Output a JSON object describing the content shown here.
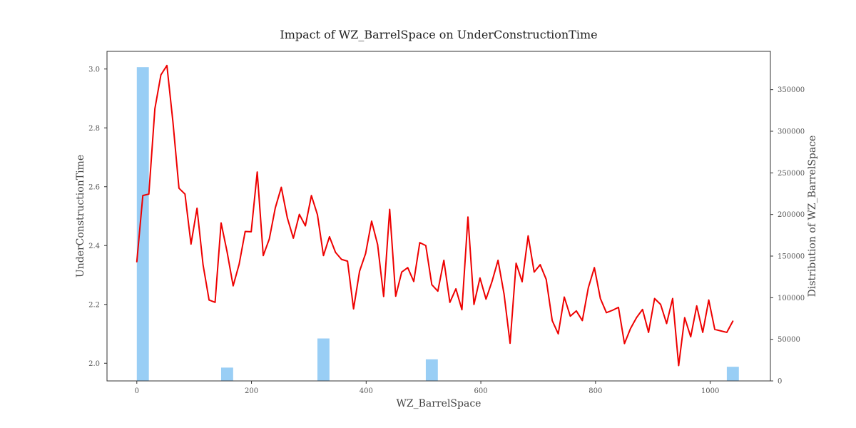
{
  "chart_data": {
    "type": "line",
    "title": "Impact of WZ_BarrelSpace on UnderConstructionTime",
    "xlabel": "WZ_BarrelSpace",
    "ylabel": "UnderConstructionTime",
    "y2label": "Distribution of WZ_BarrelSpace",
    "xlim": [
      -52,
      1105
    ],
    "ylim": [
      1.94,
      3.06
    ],
    "y2lim": [
      0,
      396000
    ],
    "xticks": [
      0,
      200,
      400,
      600,
      800,
      1000
    ],
    "yticks": [
      2.0,
      2.2,
      2.4,
      2.6,
      2.8,
      3.0
    ],
    "y2ticks": [
      0,
      50000,
      100000,
      150000,
      200000,
      250000,
      300000,
      350000
    ],
    "line_color": "#ee0000",
    "bar_color": "#99cef5",
    "grid": false,
    "legend": "none",
    "series": [
      {
        "x": [
          0,
          10.5,
          21,
          31.5,
          42,
          52.5,
          63,
          73.5,
          84,
          94.5,
          105,
          115.5,
          126,
          136.5,
          147,
          157.5,
          168,
          178.5,
          189,
          199.5,
          210,
          220.5,
          231,
          241.5,
          252,
          262.5,
          273,
          283.5,
          294,
          304.5,
          315,
          325.5,
          336,
          346.5,
          357,
          367.5,
          378,
          388.5,
          399,
          409.5,
          420,
          430.5,
          441,
          451.5,
          462,
          472.5,
          483,
          493.5,
          504,
          514.5,
          525,
          535.5,
          546,
          556.5,
          567,
          577.5,
          588,
          598.5,
          609,
          619.5,
          630,
          640.5,
          651,
          661.5,
          672,
          682.5,
          693,
          703.5,
          714,
          724.5,
          735,
          745.5,
          756,
          766.5,
          777,
          787.5,
          798,
          808.5,
          819,
          829.5,
          840,
          850.5,
          861,
          871.5,
          882,
          892.5,
          903,
          913.5,
          924,
          934.5,
          945,
          955.5,
          966,
          976.5,
          987,
          997.5,
          1008,
          1018.5,
          1029,
          1039.5
        ],
        "values": [
          2.345,
          2.57,
          2.575,
          2.865,
          2.98,
          3.012,
          2.82,
          2.595,
          2.575,
          2.405,
          2.527,
          2.335,
          2.215,
          2.207,
          2.477,
          2.378,
          2.263,
          2.337,
          2.448,
          2.447,
          2.65,
          2.366,
          2.422,
          2.528,
          2.598,
          2.494,
          2.425,
          2.506,
          2.467,
          2.57,
          2.505,
          2.366,
          2.43,
          2.377,
          2.353,
          2.347,
          2.185,
          2.313,
          2.373,
          2.483,
          2.403,
          2.227,
          2.523,
          2.228,
          2.31,
          2.325,
          2.278,
          2.41,
          2.4,
          2.267,
          2.245,
          2.35,
          2.207,
          2.253,
          2.182,
          2.497,
          2.2,
          2.29,
          2.218,
          2.278,
          2.35,
          2.235,
          2.068,
          2.34,
          2.277,
          2.433,
          2.31,
          2.335,
          2.285,
          2.145,
          2.1,
          2.225,
          2.16,
          2.178,
          2.145,
          2.257,
          2.325,
          2.22,
          2.172,
          2.18,
          2.19,
          2.067,
          2.118,
          2.155,
          2.183,
          2.105,
          2.22,
          2.2,
          2.135,
          2.22,
          1.992,
          2.155,
          2.09,
          2.195,
          2.105,
          2.215,
          2.115,
          2.11,
          2.105,
          2.143
        ]
      }
    ],
    "histogram": {
      "bin_start": 0,
      "bin_width": 21,
      "nbins": 50,
      "nonzero_bins": [
        {
          "index": 0,
          "count": 377000
        },
        {
          "index": 7,
          "count": 16000
        },
        {
          "index": 15,
          "count": 51000
        },
        {
          "index": 24,
          "count": 26000
        },
        {
          "index": 49,
          "count": 17000
        }
      ]
    }
  }
}
